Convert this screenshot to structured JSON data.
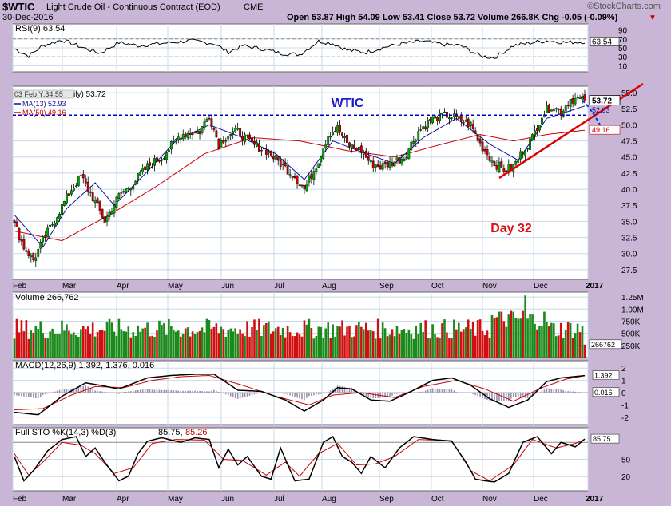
{
  "header": {
    "symbol": "$WTIC",
    "name": "Light Crude Oil - Continuous Contract (EOD)",
    "exchange": "CME",
    "date": "30-Dec-2016",
    "ohlc": "Open 53.87  High 54.09  Low 53.41  Close 53.72  Volume 266.8K  Chg -0.05 (-0.09%)",
    "brand": "©StockCharts.com",
    "arrow": "▼"
  },
  "chart_data": {
    "type": "stock-ohlc",
    "months": [
      "Feb",
      "Mar",
      "Apr",
      "May",
      "Jun",
      "Jul",
      "Aug",
      "Sep",
      "Oct",
      "Nov",
      "Dec",
      "2017"
    ],
    "price": {
      "ylim": [
        26,
        56
      ],
      "ticks": [
        "55.0",
        "52.5",
        "50.0",
        "47.5",
        "45.0",
        "42.5",
        "40.0",
        "37.5",
        "35.0",
        "32.5",
        "30.0",
        "27.5"
      ],
      "tick_values": [
        55,
        52.5,
        50,
        47.5,
        45,
        42.5,
        40,
        37.5,
        35,
        32.5,
        30,
        27.5
      ],
      "legend_price": "ily) 53.72",
      "legend_ma13": "MA(13) 52.93",
      "legend_ma50": "MA(50) 49.16",
      "tooltip": "03 Feb Y:34.55",
      "last_label": "53.72",
      "ma13_label": "52.93",
      "ma50_label": "49.16",
      "annotation_title": "WTIC",
      "annotation_day": "Day 32",
      "anchors": [
        [
          0,
          34.5
        ],
        [
          4,
          31
        ],
        [
          8,
          29
        ],
        [
          12,
          32
        ],
        [
          18,
          36
        ],
        [
          24,
          40
        ],
        [
          28,
          42
        ],
        [
          34,
          38
        ],
        [
          38,
          35
        ],
        [
          44,
          39
        ],
        [
          50,
          41
        ],
        [
          56,
          43.5
        ],
        [
          62,
          45
        ],
        [
          70,
          48.5
        ],
        [
          78,
          49
        ],
        [
          82,
          51.5
        ],
        [
          86,
          47
        ],
        [
          90,
          48.5
        ],
        [
          94,
          49
        ],
        [
          100,
          47
        ],
        [
          106,
          46
        ],
        [
          112,
          44
        ],
        [
          118,
          42
        ],
        [
          122,
          40
        ],
        [
          128,
          44.5
        ],
        [
          132,
          48.5
        ],
        [
          136,
          49.5
        ],
        [
          140,
          47
        ],
        [
          146,
          46
        ],
        [
          150,
          44
        ],
        [
          154,
          43.5
        ],
        [
          158,
          44
        ],
        [
          164,
          45
        ],
        [
          170,
          49
        ],
        [
          176,
          51
        ],
        [
          182,
          51.5
        ],
        [
          186,
          51
        ],
        [
          192,
          50
        ],
        [
          196,
          47
        ],
        [
          202,
          44
        ],
        [
          206,
          43
        ],
        [
          210,
          43.5
        ],
        [
          214,
          46
        ],
        [
          218,
          48
        ],
        [
          222,
          51.5
        ],
        [
          226,
          53
        ],
        [
          230,
          52
        ],
        [
          234,
          54
        ],
        [
          238,
          54
        ],
        [
          240,
          53.72
        ]
      ],
      "ma13_anchors": [
        [
          0,
          36
        ],
        [
          12,
          31
        ],
        [
          22,
          37
        ],
        [
          34,
          41
        ],
        [
          42,
          37.5
        ],
        [
          54,
          42
        ],
        [
          68,
          47.5
        ],
        [
          82,
          50
        ],
        [
          96,
          48
        ],
        [
          110,
          45.5
        ],
        [
          122,
          41.5
        ],
        [
          134,
          47.5
        ],
        [
          148,
          45.5
        ],
        [
          160,
          44
        ],
        [
          172,
          48
        ],
        [
          186,
          51
        ],
        [
          200,
          47
        ],
        [
          212,
          44.5
        ],
        [
          224,
          51
        ],
        [
          240,
          52.93
        ]
      ],
      "ma50_anchors": [
        [
          0,
          33.5
        ],
        [
          20,
          32
        ],
        [
          40,
          36
        ],
        [
          60,
          40.5
        ],
        [
          80,
          45.5
        ],
        [
          100,
          48
        ],
        [
          120,
          47.5
        ],
        [
          140,
          46
        ],
        [
          160,
          45
        ],
        [
          180,
          47
        ],
        [
          196,
          48.5
        ],
        [
          210,
          47.5
        ],
        [
          224,
          48.5
        ],
        [
          240,
          49.16
        ]
      ],
      "horizontal_line": 51.5
    },
    "rsi": {
      "label": "RSI(9) 63.54",
      "value_label": "63.54",
      "ticks": [
        "90",
        "70",
        "50",
        "30",
        "10"
      ],
      "tick_values": [
        90,
        70,
        50,
        30,
        10
      ],
      "levels": [
        70,
        30
      ],
      "anchors": [
        [
          0,
          48
        ],
        [
          6,
          32
        ],
        [
          12,
          55
        ],
        [
          20,
          68
        ],
        [
          28,
          52
        ],
        [
          36,
          38
        ],
        [
          44,
          62
        ],
        [
          52,
          55
        ],
        [
          62,
          60
        ],
        [
          74,
          66
        ],
        [
          84,
          60
        ],
        [
          90,
          40
        ],
        [
          96,
          55
        ],
        [
          104,
          48
        ],
        [
          112,
          38
        ],
        [
          120,
          35
        ],
        [
          128,
          65
        ],
        [
          134,
          60
        ],
        [
          140,
          45
        ],
        [
          148,
          40
        ],
        [
          156,
          52
        ],
        [
          164,
          60
        ],
        [
          172,
          65
        ],
        [
          180,
          58
        ],
        [
          188,
          55
        ],
        [
          196,
          32
        ],
        [
          202,
          28
        ],
        [
          210,
          55
        ],
        [
          218,
          62
        ],
        [
          224,
          66
        ],
        [
          232,
          62
        ],
        [
          240,
          63.54
        ]
      ]
    },
    "volume": {
      "label": "Volume 266,762",
      "value_label": "266762",
      "ticks": [
        "1.25M",
        "1.00M",
        "750K",
        "500K",
        "250K"
      ],
      "tick_values": [
        1250000,
        1000000,
        750000,
        500000,
        250000
      ],
      "ymax": 1350000
    },
    "macd": {
      "label": "MACD(12,26,9) 1.392, 1.376, 0.016",
      "macd_label": "1.392",
      "hist_label": "0.016",
      "ticks": [
        "2",
        "1",
        "0",
        "-1",
        "-2"
      ],
      "tick_values": [
        2,
        1,
        0,
        -1,
        -2
      ],
      "ylim": [
        -2.6,
        2.6
      ],
      "anchors": [
        [
          0,
          -1.6
        ],
        [
          10,
          -1.8
        ],
        [
          20,
          -0.3
        ],
        [
          30,
          0.8
        ],
        [
          36,
          0.6
        ],
        [
          44,
          0.3
        ],
        [
          56,
          1.2
        ],
        [
          66,
          1.4
        ],
        [
          76,
          1.5
        ],
        [
          84,
          1.5
        ],
        [
          94,
          0.2
        ],
        [
          104,
          0.1
        ],
        [
          114,
          -0.6
        ],
        [
          122,
          -1.5
        ],
        [
          130,
          -0.6
        ],
        [
          136,
          0.4
        ],
        [
          142,
          0.3
        ],
        [
          150,
          -0.6
        ],
        [
          158,
          -0.7
        ],
        [
          166,
          0
        ],
        [
          176,
          1.0
        ],
        [
          184,
          1.2
        ],
        [
          192,
          0.6
        ],
        [
          200,
          -0.5
        ],
        [
          208,
          -1.2
        ],
        [
          216,
          -0.6
        ],
        [
          224,
          0.9
        ],
        [
          230,
          1.2
        ],
        [
          240,
          1.392
        ]
      ],
      "signal_anchors": [
        [
          0,
          -1.4
        ],
        [
          12,
          -1.3
        ],
        [
          24,
          -0.2
        ],
        [
          34,
          0.5
        ],
        [
          46,
          0.4
        ],
        [
          58,
          1.0
        ],
        [
          70,
          1.3
        ],
        [
          82,
          1.4
        ],
        [
          96,
          0.6
        ],
        [
          110,
          -0.3
        ],
        [
          124,
          -1.0
        ],
        [
          134,
          -0.2
        ],
        [
          146,
          0
        ],
        [
          160,
          -0.4
        ],
        [
          172,
          0.5
        ],
        [
          186,
          1.0
        ],
        [
          198,
          0.3
        ],
        [
          210,
          -0.7
        ],
        [
          222,
          0.4
        ],
        [
          232,
          1.1
        ],
        [
          240,
          1.376
        ]
      ]
    },
    "sto": {
      "label_prefix": "Full STO %K(14,3) %D(3) ",
      "k_label": "85.75",
      "d_label": "85.26",
      "value_label": "85.75",
      "ticks": [
        "50",
        "20"
      ],
      "tick_values": [
        50,
        20
      ],
      "levels": [
        80,
        20
      ],
      "anchors": [
        [
          0,
          55
        ],
        [
          4,
          12
        ],
        [
          8,
          30
        ],
        [
          14,
          65
        ],
        [
          20,
          85
        ],
        [
          26,
          90
        ],
        [
          30,
          55
        ],
        [
          34,
          70
        ],
        [
          38,
          45
        ],
        [
          44,
          12
        ],
        [
          48,
          20
        ],
        [
          52,
          60
        ],
        [
          56,
          82
        ],
        [
          62,
          88
        ],
        [
          70,
          80
        ],
        [
          76,
          88
        ],
        [
          82,
          85
        ],
        [
          86,
          35
        ],
        [
          90,
          68
        ],
        [
          94,
          40
        ],
        [
          98,
          55
        ],
        [
          104,
          20
        ],
        [
          108,
          15
        ],
        [
          112,
          70
        ],
        [
          118,
          12
        ],
        [
          124,
          15
        ],
        [
          130,
          80
        ],
        [
          134,
          90
        ],
        [
          138,
          55
        ],
        [
          142,
          45
        ],
        [
          146,
          25
        ],
        [
          150,
          55
        ],
        [
          156,
          35
        ],
        [
          162,
          70
        ],
        [
          168,
          90
        ],
        [
          176,
          85
        ],
        [
          184,
          82
        ],
        [
          190,
          45
        ],
        [
          194,
          15
        ],
        [
          198,
          12
        ],
        [
          202,
          10
        ],
        [
          208,
          25
        ],
        [
          214,
          80
        ],
        [
          220,
          90
        ],
        [
          226,
          60
        ],
        [
          230,
          80
        ],
        [
          236,
          72
        ],
        [
          240,
          85.75
        ]
      ],
      "d_anchors": [
        [
          0,
          60
        ],
        [
          6,
          22
        ],
        [
          12,
          45
        ],
        [
          20,
          80
        ],
        [
          28,
          75
        ],
        [
          34,
          60
        ],
        [
          42,
          25
        ],
        [
          50,
          35
        ],
        [
          58,
          78
        ],
        [
          68,
          85
        ],
        [
          80,
          84
        ],
        [
          88,
          50
        ],
        [
          96,
          48
        ],
        [
          106,
          22
        ],
        [
          114,
          45
        ],
        [
          120,
          20
        ],
        [
          128,
          60
        ],
        [
          136,
          78
        ],
        [
          144,
          40
        ],
        [
          152,
          42
        ],
        [
          160,
          55
        ],
        [
          170,
          85
        ],
        [
          184,
          83
        ],
        [
          192,
          30
        ],
        [
          200,
          12
        ],
        [
          210,
          40
        ],
        [
          218,
          85
        ],
        [
          228,
          70
        ],
        [
          236,
          78
        ],
        [
          240,
          85.26
        ]
      ]
    }
  }
}
